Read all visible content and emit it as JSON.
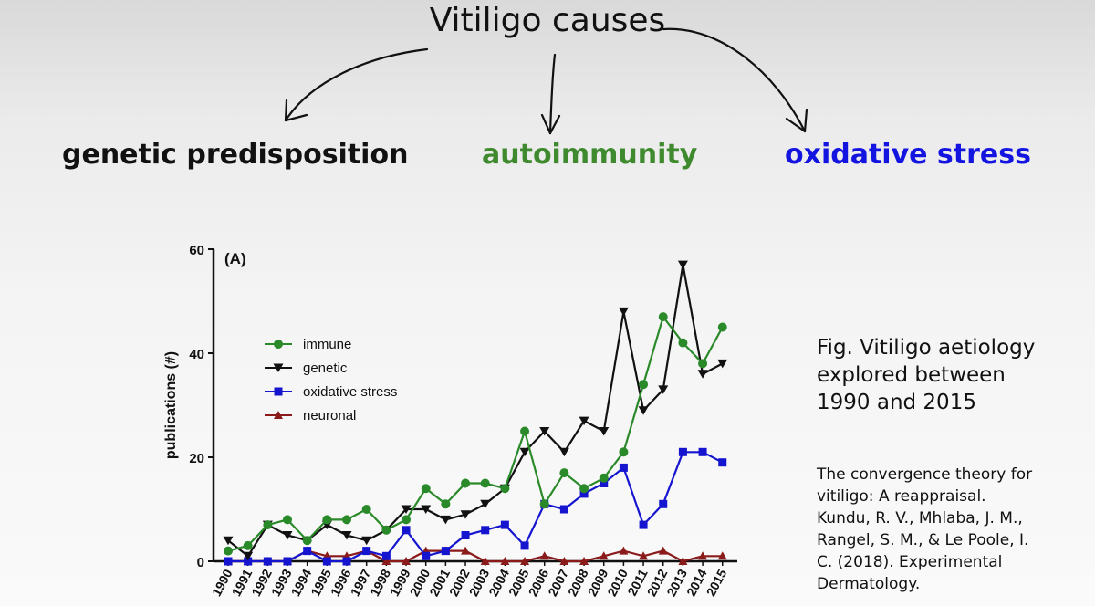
{
  "slide": {
    "title": "Vitiligo causes",
    "causes": {
      "genetic": "genetic  predisposition",
      "autoimmunity": "autoimmunity",
      "oxidative": "oxidative stress"
    },
    "colors": {
      "autoimmunity": "#3f8a2f",
      "oxidative": "#1414e0"
    },
    "caption_lines": [
      "Fig. Vitiligo aetiology",
      "explored between",
      "1990 and 2015"
    ],
    "reference_lines": [
      "The convergence theory for",
      "vitiligo: A reappraisal.",
      "Kundu, R. V., Mhlaba, J. M.,",
      "Rangel, S. M., & Le Poole, I.",
      "C. (2018). Experimental",
      "Dermatology."
    ]
  },
  "chart_data": {
    "type": "line",
    "panel_label": "(A)",
    "ylabel": "publications (#)",
    "xlabel": "",
    "ylim": [
      0,
      60
    ],
    "yticks": [
      0,
      20,
      40,
      60
    ],
    "legend_position": "center-left",
    "x": [
      "1990",
      "1991",
      "1992",
      "1993",
      "1994",
      "1995",
      "1996",
      "1997",
      "1998",
      "1999",
      "2000",
      "2001",
      "2002",
      "2003",
      "2004",
      "2005",
      "2006",
      "2007",
      "2008",
      "2009",
      "2010",
      "2011",
      "2012",
      "2013",
      "2014",
      "2015"
    ],
    "series": [
      {
        "name": "immune",
        "color": "#2a8a2a",
        "marker": "circle",
        "values": [
          2,
          3,
          7,
          8,
          4,
          8,
          8,
          10,
          6,
          8,
          14,
          11,
          15,
          15,
          14,
          25,
          11,
          17,
          14,
          16,
          21,
          34,
          47,
          42,
          38,
          45
        ]
      },
      {
        "name": "genetic",
        "color": "#111111",
        "marker": "triangle-down",
        "values": [
          4,
          1,
          7,
          5,
          4,
          7,
          5,
          4,
          6,
          10,
          10,
          8,
          9,
          11,
          14,
          21,
          25,
          21,
          27,
          25,
          48,
          29,
          33,
          57,
          36,
          38
        ]
      },
      {
        "name": "oxidative stress",
        "color": "#1515d0",
        "marker": "square",
        "values": [
          0,
          0,
          0,
          0,
          2,
          0,
          0,
          2,
          1,
          6,
          1,
          2,
          5,
          6,
          7,
          3,
          11,
          10,
          13,
          15,
          18,
          7,
          11,
          21,
          21,
          19
        ]
      },
      {
        "name": "neuronal",
        "color": "#8b1a1a",
        "marker": "triangle-up",
        "values": [
          0,
          0,
          0,
          0,
          2,
          1,
          1,
          2,
          0,
          0,
          2,
          2,
          2,
          0,
          0,
          0,
          1,
          0,
          0,
          1,
          2,
          1,
          2,
          0,
          1,
          1
        ]
      }
    ]
  }
}
